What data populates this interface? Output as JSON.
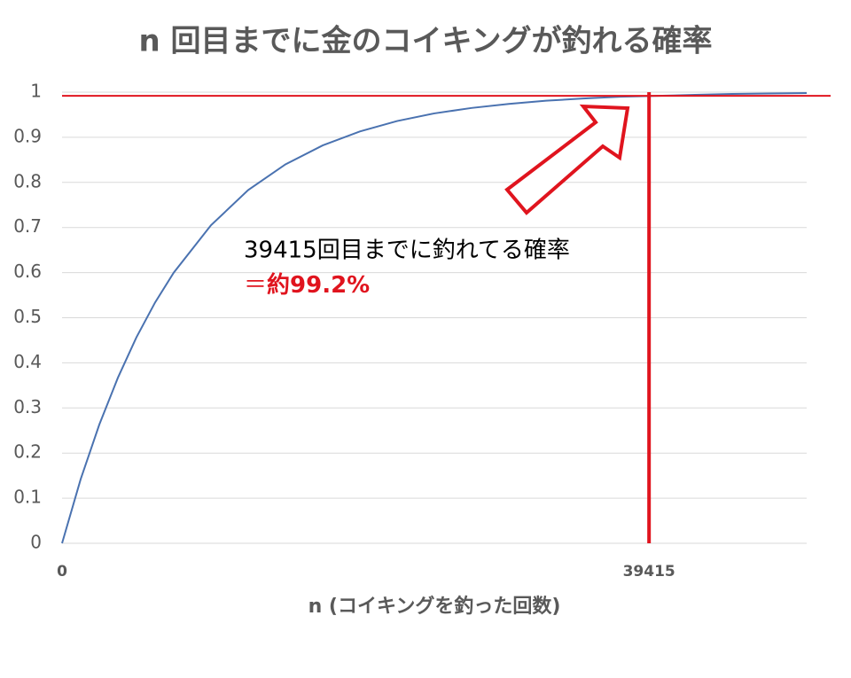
{
  "chart_data": {
    "type": "line",
    "title": "n 回目までに金のコイキングが釣れる確率",
    "x_label": "n (コイキングを釣った回数)",
    "x": [
      0,
      1250,
      2500,
      3750,
      5000,
      6250,
      7500,
      10000,
      12500,
      15000,
      17500,
      20000,
      22500,
      25000,
      27500,
      30000,
      32500,
      35000,
      37500,
      40000,
      42500,
      45000,
      47500,
      50000
    ],
    "series": [
      {
        "name": "確率",
        "color": "#4a72b0",
        "values": [
          0,
          0.142,
          0.263,
          0.367,
          0.457,
          0.534,
          0.6,
          0.705,
          0.783,
          0.84,
          0.882,
          0.913,
          0.936,
          0.953,
          0.965,
          0.974,
          0.981,
          0.986,
          0.99,
          0.992,
          0.994,
          0.996,
          0.997,
          0.998
        ]
      }
    ],
    "xlim": [
      0,
      50000
    ],
    "xticks": [
      0,
      39415
    ],
    "ylim": [
      0,
      1
    ],
    "yticks": [
      0,
      0.1,
      0.2,
      0.3,
      0.4,
      0.5,
      0.6,
      0.7,
      0.8,
      0.9,
      1
    ],
    "grid": true,
    "hline": 0.992,
    "reference_color": "#e0141e",
    "annotation": {
      "line1": "39415回目までに釣れてる確率",
      "prefix": "＝",
      "highlight": "約99.2%"
    }
  }
}
